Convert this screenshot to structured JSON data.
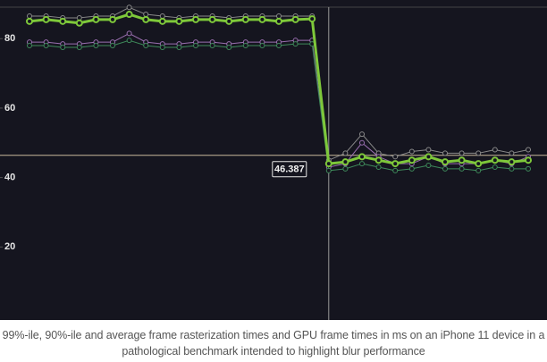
{
  "chart_data": {
    "type": "line",
    "series": [
      {
        "color": "#8a8a8a",
        "width": 1,
        "values": [
          86.5,
          86.5,
          86,
          86,
          86.5,
          86.5,
          89,
          87,
          86.5,
          86,
          86.5,
          86.5,
          86,
          86.5,
          86.5,
          86.5,
          86.5,
          86.5,
          45,
          47,
          52.5,
          47,
          46,
          47.5,
          48,
          47,
          47,
          47,
          48,
          47,
          48
        ]
      },
      {
        "color": "#9a6fb0",
        "width": 1,
        "values": [
          79,
          79,
          78.5,
          78.5,
          79,
          79,
          81.5,
          79,
          78.5,
          78.5,
          79,
          79,
          78.5,
          79,
          79,
          79,
          79.5,
          79.5,
          43,
          44,
          50,
          46,
          44,
          44,
          46,
          44,
          44,
          44,
          45,
          44,
          46
        ]
      },
      {
        "color": "#3e8a5a",
        "width": 1,
        "values": [
          78,
          78,
          77.5,
          77.5,
          78,
          78,
          79.5,
          78,
          77.5,
          77.5,
          78,
          78,
          77.5,
          78,
          78,
          78,
          78.5,
          78.5,
          42,
          42.5,
          44,
          43,
          42,
          42.5,
          43.5,
          42.5,
          42.5,
          42,
          43,
          42.5,
          42.5
        ]
      },
      {
        "color": "#7ec83a",
        "width": 3,
        "values": [
          85,
          85.5,
          85,
          84.5,
          85.5,
          85.5,
          87,
          85.5,
          85,
          85,
          85.5,
          85.5,
          85,
          85.5,
          85.5,
          85,
          85.5,
          85.7,
          44,
          44.5,
          46,
          45,
          44,
          45,
          46,
          44.5,
          45,
          44,
          45,
          44.5,
          45
        ]
      }
    ],
    "ylim": [
      0,
      90
    ],
    "yticks": [
      20,
      40,
      60,
      80
    ],
    "crosshair_value": 46.387
  },
  "caption": "99%-ile, 90%-ile and average frame rasterization times and GPU frame times in ms on an iPhone 11 device in a pathological benchmark intended to highlight blur performance"
}
